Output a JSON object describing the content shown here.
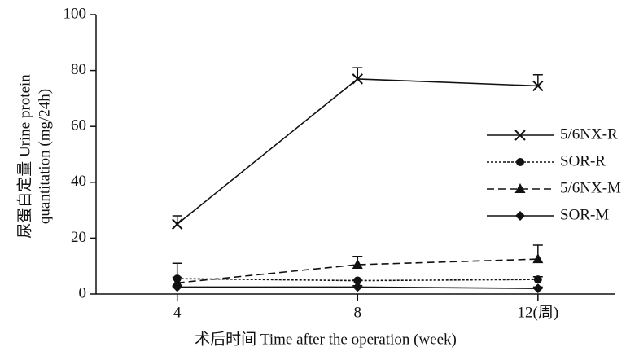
{
  "chart_data": {
    "type": "line",
    "x_label": "术后时间 Time after the operation (week)",
    "y_label": [
      "尿蛋白定量 Urine protein",
      "quantitation (mg/24h)"
    ],
    "x": [
      4,
      8,
      12
    ],
    "xlim": [
      2.2,
      13.7
    ],
    "xticks": [
      4,
      8,
      {
        "value": 12,
        "label": "12(周)"
      }
    ],
    "ylim": [
      0,
      100
    ],
    "yticks": [
      0,
      20,
      40,
      60,
      80,
      100
    ],
    "grid": false,
    "legend": "right",
    "series": [
      {
        "name": "5/6NX-R",
        "color": "#111111",
        "line_style": "solid",
        "marker": "x",
        "values": [
          25,
          77,
          74.5
        ],
        "errors": [
          3,
          4,
          4
        ]
      },
      {
        "name": "SOR-R",
        "color": "#111111",
        "line_style": "dotted",
        "marker": "circle",
        "values": [
          5.5,
          4.8,
          5.2
        ],
        "errors": [
          0.5,
          0.5,
          1
        ]
      },
      {
        "name": "5/6NX-M",
        "color": "#111111",
        "line_style": "dashed",
        "marker": "triangle",
        "values": [
          4,
          10.5,
          12.5
        ],
        "errors": [
          7,
          3,
          5
        ]
      },
      {
        "name": "SOR-M",
        "color": "#111111",
        "line_style": "solid",
        "marker": "diamond",
        "values": [
          2.5,
          2.5,
          2
        ],
        "errors": [
          0.5,
          0.5,
          0.5
        ]
      }
    ]
  }
}
